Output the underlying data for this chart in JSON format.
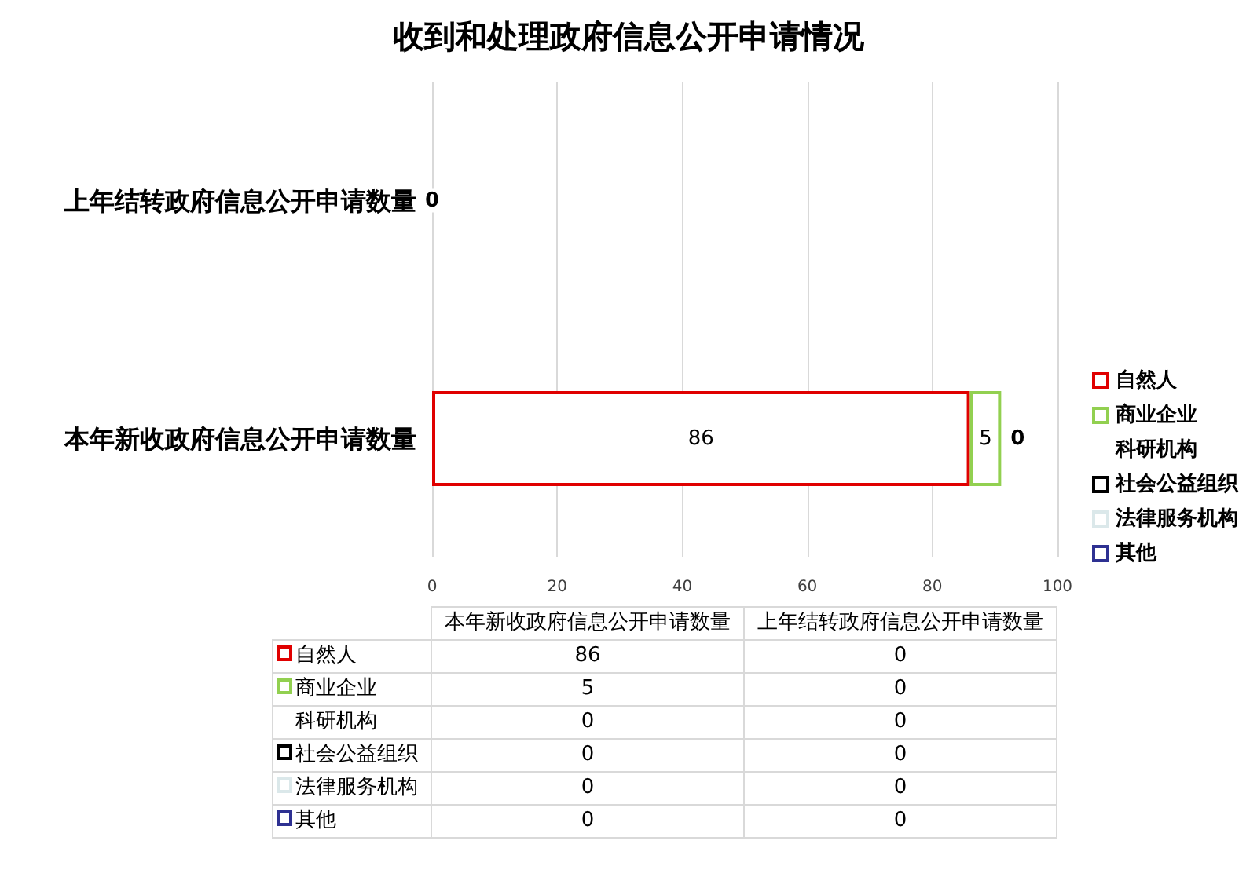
{
  "chart_data": [
    {
      "type": "bar",
      "title": "收到和处理政府信息公开申请情况",
      "orientation": "horizontal",
      "stacked": true,
      "categories": [
        "上年结转政府信息公开申请数量",
        "本年新收政府信息公开申请数量"
      ],
      "series": [
        {
          "name": "自然人",
          "color": "#e00000",
          "values": [
            0,
            86
          ],
          "value_labels": [
            "0",
            "86"
          ]
        },
        {
          "name": "商业企业",
          "color": "#92d050",
          "values": [
            0,
            5
          ],
          "value_labels": [
            null,
            "5"
          ]
        },
        {
          "name": "科研机构",
          "values": [
            0,
            0
          ],
          "value_labels": [
            null,
            null
          ]
        },
        {
          "name": "社会公益组织",
          "color": "#000000",
          "values": [
            0,
            0
          ],
          "value_labels": [
            null,
            null
          ]
        },
        {
          "name": "法律服务机构",
          "color": "#dbe8ea",
          "values": [
            0,
            0
          ],
          "value_labels": [
            null,
            null
          ]
        },
        {
          "name": "其他",
          "color": "#2e3192",
          "values": [
            0,
            0
          ],
          "value_labels": [
            null,
            "0"
          ]
        }
      ],
      "xlim": [
        0,
        100
      ],
      "xticks": [
        0,
        20,
        40,
        60,
        80,
        100
      ],
      "grid": "x",
      "legend": "right"
    },
    {
      "type": "other",
      "categories": [
        "本年新收政府信息公开申请数量",
        "上年结转政府信息公开申请数量"
      ],
      "series": [
        {
          "name": "自然人",
          "color": "#e00000",
          "values": [
            86,
            0
          ]
        },
        {
          "name": "商业企业",
          "color": "#92d050",
          "values": [
            5,
            0
          ]
        },
        {
          "name": "科研机构",
          "values": [
            0,
            0
          ]
        },
        {
          "name": "社会公益组织",
          "color": "#000000",
          "values": [
            0,
            0
          ]
        },
        {
          "name": "法律服务机构",
          "color": "#dbe8ea",
          "values": [
            0,
            0
          ]
        },
        {
          "name": "其他",
          "color": "#2e3192",
          "values": [
            0,
            0
          ]
        }
      ],
      "data_labels": true
    }
  ]
}
